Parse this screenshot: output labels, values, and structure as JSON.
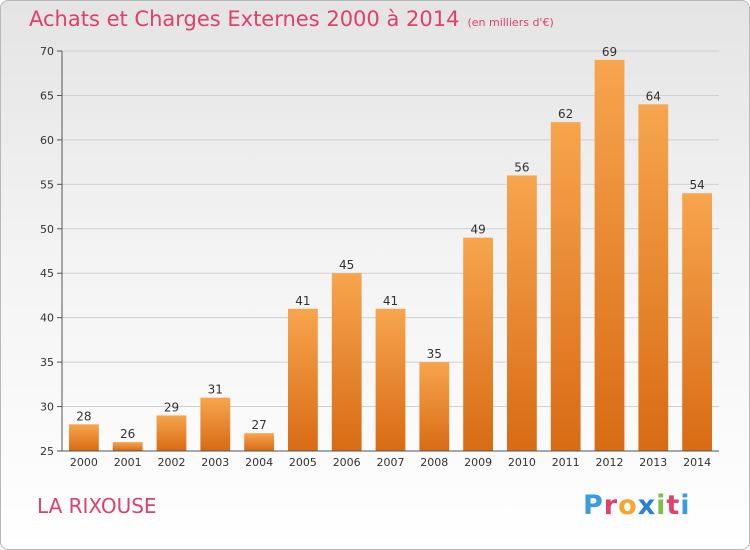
{
  "title": "Achats et Charges Externes 2000 à 2014",
  "unit": "(en milliers d'€)",
  "commune": "LA RIXOUSE",
  "logo": {
    "letters": [
      "P",
      "r",
      "o",
      "x",
      "i",
      "t",
      "i"
    ],
    "colors": [
      "#3a9de0",
      "#e0406a",
      "#f7a52b",
      "#2a7fd4",
      "#7cc242",
      "#e0406a",
      "#3a9de0"
    ]
  },
  "colors": {
    "bar_top": "#f7a54e",
    "bar_bottom": "#d86b14",
    "label": "#333333",
    "grid": "#d0d0d0"
  },
  "chart_data": {
    "type": "bar",
    "categories": [
      "2000",
      "2001",
      "2002",
      "2003",
      "2004",
      "2005",
      "2006",
      "2007",
      "2008",
      "2009",
      "2010",
      "2011",
      "2012",
      "2013",
      "2014"
    ],
    "values": [
      28,
      26,
      29,
      31,
      27,
      41,
      45,
      41,
      35,
      49,
      56,
      62,
      69,
      64,
      54
    ],
    "ylim": [
      25,
      70
    ],
    "yticks": [
      25,
      30,
      35,
      40,
      45,
      50,
      55,
      60,
      65,
      70
    ],
    "grid": true,
    "legend": "none"
  }
}
